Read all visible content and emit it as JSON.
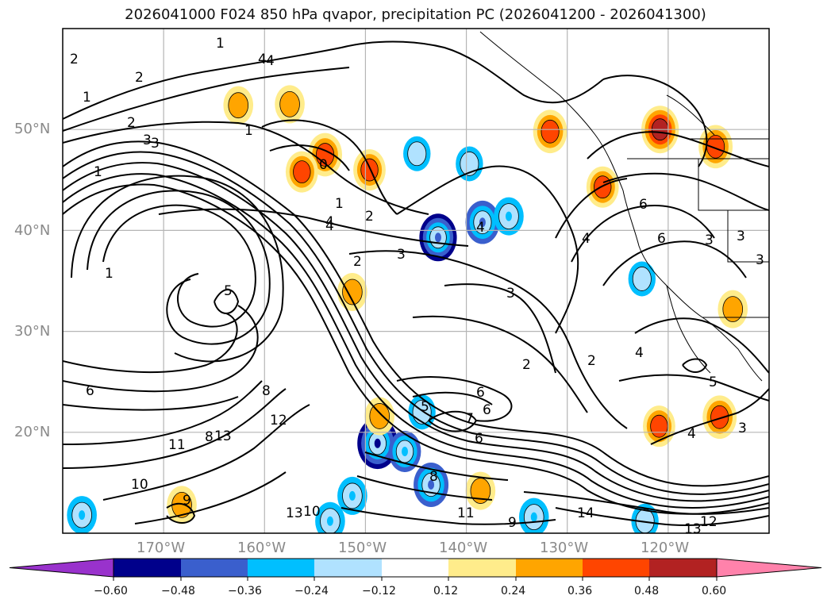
{
  "title": "2026041000 F024 850 hPa qvapor, precipitation PC (2026041200 - 2026041300)",
  "map": {
    "projection": "plate carree",
    "lon_range": [
      -180,
      -110
    ],
    "lat_range": [
      10,
      60
    ],
    "lat_ticks": [
      "50°N",
      "40°N",
      "30°N",
      "20°N"
    ],
    "lon_ticks": [
      "170°W",
      "160°W",
      "150°W",
      "140°W",
      "130°W",
      "120°W"
    ],
    "gridlines": true,
    "contour_labels": [
      "2",
      "1",
      "2",
      "4",
      "1",
      "1",
      "2",
      "1",
      "4",
      "3",
      "2",
      "0",
      "1",
      "2",
      "4",
      "4",
      "3",
      "5",
      "1",
      "6",
      "8",
      "12",
      "8",
      "11",
      "13",
      "13",
      "10",
      "8",
      "9",
      "10",
      "11",
      "9",
      "12",
      "14",
      "13",
      "6",
      "6",
      "7",
      "6",
      "5",
      "2",
      "3",
      "3",
      "2",
      "4",
      "4",
      "6",
      "6",
      "3",
      "3",
      "3",
      "4",
      "5",
      "4",
      "3"
    ]
  },
  "colorbar": {
    "colors": [
      "#9932cc",
      "#00008b",
      "#3a5fcd",
      "#00bfff",
      "#b0e2ff",
      "#ffffff",
      "#ffec8b",
      "#ffa500",
      "#ff4500",
      "#b22222",
      "#ff82ab"
    ],
    "ticks": [
      "−0.60",
      "−0.48",
      "−0.36",
      "−0.24",
      "−0.12",
      "0.12",
      "0.24",
      "0.36",
      "0.48",
      "0.60"
    ],
    "extend": "both"
  },
  "chart_data": {
    "type": "map",
    "title": "2026041000 F024 850 hPa qvapor, precipitation PC (2026041200 - 2026041300)",
    "levels": [
      -0.6,
      -0.48,
      -0.36,
      -0.24,
      -0.12,
      0.12,
      0.24,
      0.36,
      0.48,
      0.6
    ],
    "precip_shading": [
      {
        "lon": -154.0,
        "lat": 47.5,
        "value": 0.4
      },
      {
        "lon": -149.6,
        "lat": 46.0,
        "value": 0.36
      },
      {
        "lon": -156.3,
        "lat": 45.8,
        "value": 0.36
      },
      {
        "lon": -151.3,
        "lat": 33.9,
        "value": 0.3
      },
      {
        "lon": -142.8,
        "lat": 39.3,
        "value": -0.48
      },
      {
        "lon": -138.4,
        "lat": 40.8,
        "value": -0.4
      },
      {
        "lon": -135.8,
        "lat": 41.4,
        "value": -0.3
      },
      {
        "lon": -139.7,
        "lat": 46.6,
        "value": -0.24
      },
      {
        "lon": -144.9,
        "lat": 47.6,
        "value": -0.24
      },
      {
        "lon": -148.8,
        "lat": 18.9,
        "value": -0.55
      },
      {
        "lon": -146.1,
        "lat": 18.1,
        "value": -0.36
      },
      {
        "lon": -143.5,
        "lat": 14.8,
        "value": -0.42
      },
      {
        "lon": -151.3,
        "lat": 13.7,
        "value": -0.3
      },
      {
        "lon": -153.5,
        "lat": 11.2,
        "value": -0.3
      },
      {
        "lon": -178.1,
        "lat": 11.8,
        "value": -0.3
      },
      {
        "lon": -144.4,
        "lat": 22.0,
        "value": -0.24
      },
      {
        "lon": -148.6,
        "lat": 21.6,
        "value": 0.3
      },
      {
        "lon": -131.7,
        "lat": 49.8,
        "value": 0.4
      },
      {
        "lon": -120.8,
        "lat": 50.0,
        "value": 0.48
      },
      {
        "lon": -115.3,
        "lat": 48.3,
        "value": 0.4
      },
      {
        "lon": -126.5,
        "lat": 44.3,
        "value": 0.36
      },
      {
        "lon": -114.9,
        "lat": 21.5,
        "value": 0.4
      },
      {
        "lon": -120.9,
        "lat": 20.6,
        "value": 0.36
      },
      {
        "lon": -133.3,
        "lat": 11.6,
        "value": -0.3
      },
      {
        "lon": -122.3,
        "lat": 11.2,
        "value": -0.24
      },
      {
        "lon": -168.2,
        "lat": 12.8,
        "value": 0.3
      },
      {
        "lon": -138.6,
        "lat": 14.2,
        "value": 0.3
      },
      {
        "lon": -162.6,
        "lat": 52.4,
        "value": 0.3
      },
      {
        "lon": -157.5,
        "lat": 52.5,
        "value": 0.3
      },
      {
        "lon": -122.6,
        "lat": 35.2,
        "value": -0.24
      },
      {
        "lon": -113.6,
        "lat": 32.2,
        "value": 0.3
      }
    ]
  }
}
